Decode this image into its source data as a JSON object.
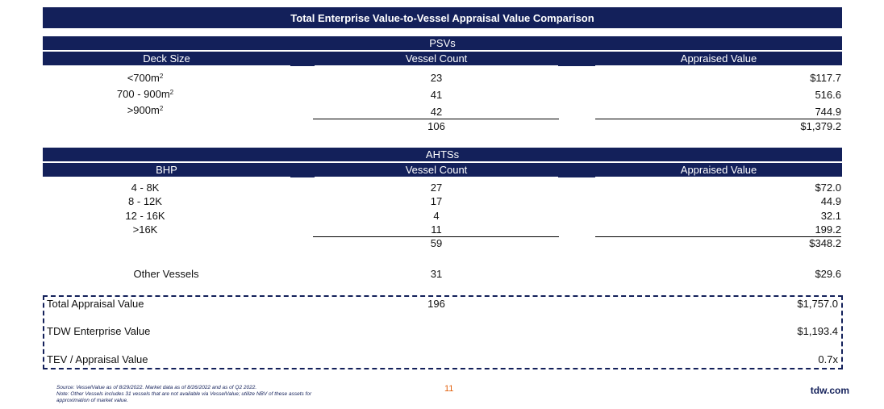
{
  "title": "Total Enterprise Value-to-Vessel Appraisal Value Comparison",
  "psv": {
    "section_label": "PSVs",
    "headers": [
      "Deck Size",
      "Vessel Count",
      "Appraised Value"
    ],
    "rows": [
      {
        "label_base": "<700m",
        "label_sup": "2",
        "count": "23",
        "value": "$117.7"
      },
      {
        "label_base": "700 - 900m",
        "label_sup": "2",
        "count": "41",
        "value": "516.6"
      },
      {
        "label_base": ">900m",
        "label_sup": "2",
        "count": "42",
        "value": "744.9"
      }
    ],
    "total_count": "106",
    "total_value": "$1,379.2"
  },
  "ahts": {
    "section_label": "AHTSs",
    "headers": [
      "BHP",
      "Vessel Count",
      "Appraised Value"
    ],
    "rows": [
      {
        "label": "4 - 8K",
        "count": "27",
        "value": "$72.0"
      },
      {
        "label": "8 - 12K",
        "count": "17",
        "value": "44.9"
      },
      {
        "label": "12 - 16K",
        "count": "4",
        "value": "32.1"
      },
      {
        "label": ">16K",
        "count": "11",
        "value": "199.2"
      }
    ],
    "total_count": "59",
    "total_value": "$348.2"
  },
  "other": {
    "label": "Other Vessels",
    "count": "31",
    "value": "$29.6"
  },
  "summary": {
    "total_appraisal_label": "Total Appraisal Value",
    "total_appraisal_count": "196",
    "total_appraisal_value": "$1,757.0",
    "enterprise_label": "TDW Enterprise Value",
    "enterprise_value": "$1,193.4",
    "ratio_label": "TEV / Appraisal Value",
    "ratio_value": "0.7x"
  },
  "footer": {
    "source_line1": "Source: VesselValue as of 8/29/2022. Market data as of 8/26/2022 and as of Q2 2022.",
    "source_line2": "Note: Other Vessels includes 31 vessels that are not available via VesselValue; utilize NBV of these assets for",
    "source_line3": "approximation of market value.",
    "page_number": "11",
    "site": "tdw.com"
  },
  "colors": {
    "navy": "#13205a",
    "page_number": "#e2620f"
  }
}
